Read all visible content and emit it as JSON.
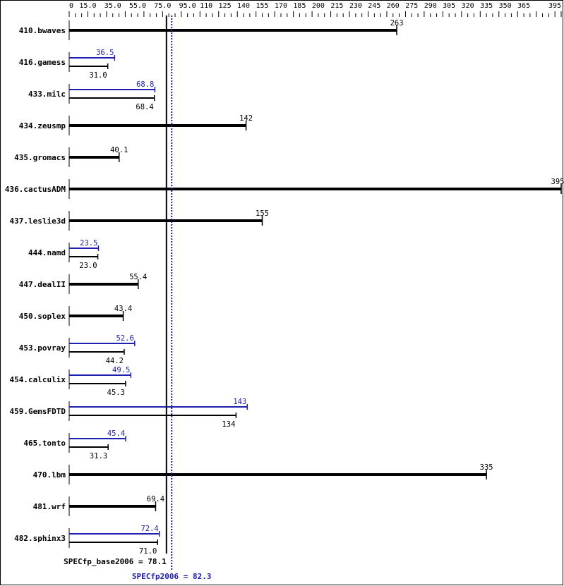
{
  "chart_data": {
    "type": "bar",
    "orientation": "horizontal",
    "xlim": [
      0,
      395
    ],
    "tick_labels": [
      "0",
      "15.0",
      "35.0",
      "55.0",
      "75.0",
      "95.0",
      "110",
      "125",
      "140",
      "155",
      "170",
      "185",
      "200",
      "215",
      "230",
      "245",
      "260",
      "275",
      "290",
      "305",
      "320",
      "335",
      "350",
      "365",
      "395"
    ],
    "tick_values": [
      0,
      15,
      35,
      55,
      75,
      95,
      110,
      125,
      140,
      155,
      170,
      185,
      200,
      215,
      230,
      245,
      260,
      275,
      290,
      305,
      320,
      335,
      350,
      365,
      395
    ],
    "colors": {
      "base": "#000000",
      "peak": "#2020b0"
    },
    "categories": [
      "410.bwaves",
      "416.gamess",
      "433.milc",
      "434.zeusmp",
      "435.gromacs",
      "436.cactusADM",
      "437.leslie3d",
      "444.namd",
      "447.dealII",
      "450.soplex",
      "453.povray",
      "454.calculix",
      "459.GemsFDTD",
      "465.tonto",
      "470.lbm",
      "481.wrf",
      "482.sphinx3"
    ],
    "series": [
      {
        "name": "SPECfp_base2006",
        "values": [
          263,
          31.0,
          68.4,
          142,
          40.1,
          395,
          155,
          23.0,
          55.4,
          43.4,
          44.2,
          45.3,
          134,
          31.3,
          335,
          69.4,
          71.0
        ],
        "labels": [
          "263",
          "31.0",
          "68.4",
          "142",
          "40.1",
          "395",
          "155",
          "23.0",
          "55.4",
          "43.4",
          "44.2",
          "45.3",
          "134",
          "31.3",
          "335",
          "69.4",
          "71.0"
        ]
      },
      {
        "name": "SPECfp2006",
        "values": [
          null,
          36.5,
          68.8,
          null,
          null,
          null,
          null,
          23.5,
          null,
          null,
          52.6,
          49.5,
          143,
          45.4,
          null,
          null,
          72.4
        ],
        "labels": [
          null,
          "36.5",
          "68.8",
          null,
          null,
          null,
          null,
          "23.5",
          null,
          null,
          "52.6",
          "49.5",
          "143",
          "45.4",
          null,
          null,
          "72.4"
        ]
      }
    ],
    "reference_lines": [
      {
        "label": "SPECfp_base2006 = 78.1",
        "value": 78.1,
        "style": "solid"
      },
      {
        "label": "SPECfp2006 = 82.3",
        "value": 82.3,
        "style": "dotted"
      }
    ]
  }
}
